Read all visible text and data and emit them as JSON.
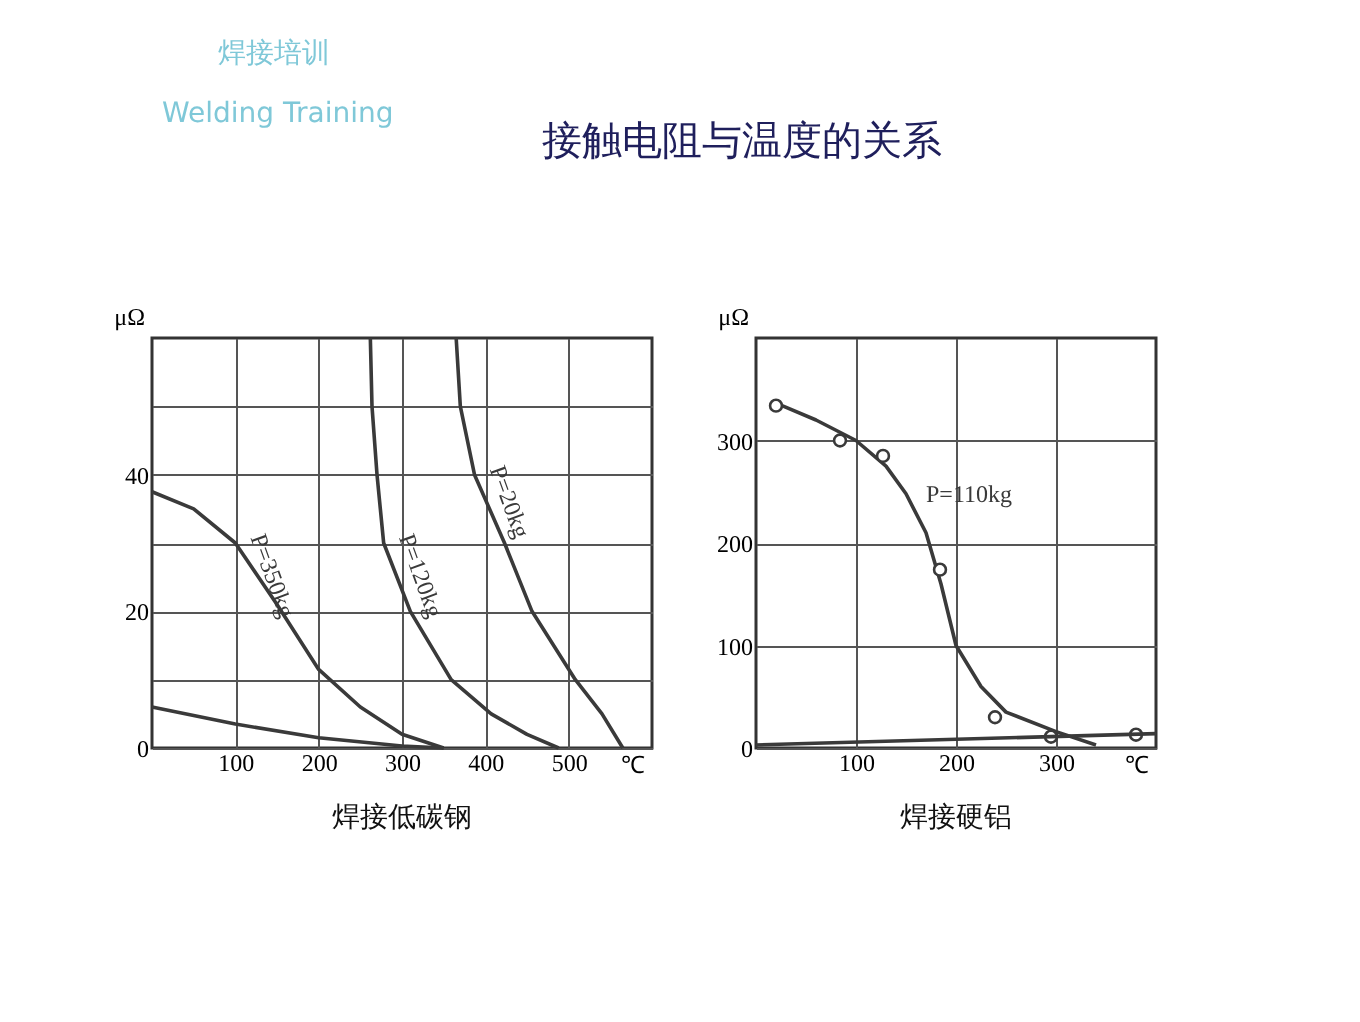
{
  "chart_data": [
    {
      "type": "line",
      "title": "接触电阻与温度的关系",
      "subtitle": "焊接低碳钢",
      "annotations": [
        "焊接培训",
        "Welding Training"
      ],
      "xlabel": "℃",
      "ylabel": "μΩ",
      "xlim": [
        0,
        600
      ],
      "ylim": [
        0,
        60
      ],
      "xticks": [
        100,
        200,
        300,
        400,
        500
      ],
      "yticks": [
        0,
        {
          "value": 10,
          "label": null
        },
        20,
        {
          "value": 30,
          "label": null
        },
        40,
        {
          "value": 50,
          "label": null
        }
      ],
      "grid": true,
      "line_style": "solid",
      "marker": "none",
      "series": [
        {
          "name": "P=350kg",
          "color": "#3a3a3a",
          "x": [
            0,
            50,
            100,
            150,
            200,
            250,
            300,
            350
          ],
          "values": [
            37.5,
            35,
            30,
            21,
            11.5,
            6,
            2,
            0
          ]
        },
        {
          "name": "P=120kg",
          "color": "#3a3a3a",
          "x": [
            262,
            264,
            270,
            278,
            310,
            359,
            407,
            450,
            488
          ],
          "values": [
            60,
            50,
            40,
            30,
            20,
            10,
            5,
            2,
            0
          ]
        },
        {
          "name": "P=20kg",
          "color": "#3a3a3a",
          "x": [
            365,
            370,
            387,
            423,
            456,
            508,
            540,
            565
          ],
          "values": [
            60,
            50,
            40,
            30,
            20,
            10,
            5,
            0
          ]
        },
        {
          "color": "#3a3a3a",
          "x": [
            0,
            100,
            200,
            300,
            350
          ],
          "values": [
            6,
            3.5,
            1.5,
            0.3,
            0
          ]
        }
      ]
    },
    {
      "type": "line",
      "subtitle": "焊接硬铝",
      "xlabel": "℃",
      "ylabel": "μΩ",
      "xlim": [
        0,
        400
      ],
      "ylim": [
        0,
        400
      ],
      "xticks": [
        100,
        200,
        300
      ],
      "yticks": [
        0,
        100,
        200,
        300
      ],
      "grid": true,
      "line_style": "solid",
      "marker": "none",
      "series": [
        {
          "name": "P=110kg",
          "color": "#3a3a3a",
          "x": [
            26,
            60,
            100,
            130,
            150,
            170,
            185,
            200,
            225,
            250,
            300,
            340
          ],
          "values": [
            334,
            320,
            300,
            275,
            248,
            210,
            160,
            100,
            60,
            35,
            16,
            3
          ]
        },
        {
          "type": "scatter",
          "marker": "circle",
          "color": "#3a3a3a",
          "x": [
            20,
            84,
            127,
            184,
            239,
            295,
            380
          ],
          "values": [
            334,
            300,
            285,
            174,
            30,
            11,
            13
          ]
        },
        {
          "color": "#3a3a3a",
          "x": [
            0,
            400
          ],
          "values": [
            3,
            14
          ]
        }
      ]
    }
  ]
}
